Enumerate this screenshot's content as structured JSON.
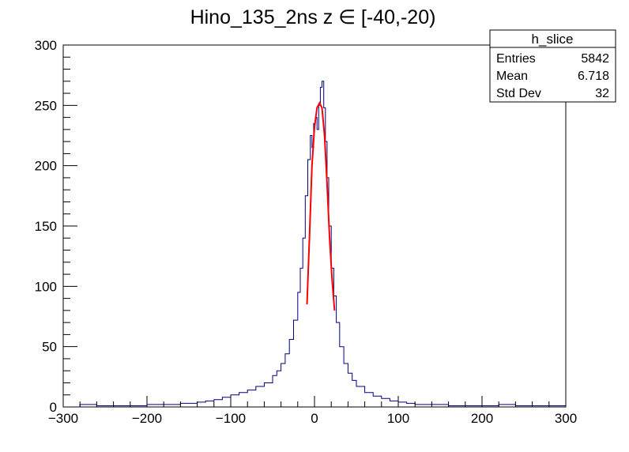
{
  "chart_data": {
    "type": "histogram",
    "title": "Hino_135_2ns z  ∈ [-40,-20)",
    "xlabel": "",
    "ylabel": "",
    "xlim": [
      -300,
      300
    ],
    "ylim": [
      0,
      300
    ],
    "x_ticks": [
      -300,
      -200,
      -100,
      0,
      100,
      200,
      300
    ],
    "x_tick_labels": [
      "−300",
      "−200",
      "−100",
      "0",
      "100",
      "200",
      "300"
    ],
    "y_ticks": [
      0,
      50,
      100,
      150,
      200,
      250,
      300
    ],
    "y_tick_labels": [
      "0",
      "50",
      "100",
      "150",
      "200",
      "250",
      "300"
    ],
    "grid": false,
    "histogram_color": "#00007f",
    "fit_color": "#ff0000",
    "series": [
      {
        "kind": "histogram",
        "x": [
          -300,
          -280,
          -260,
          -240,
          -220,
          -200,
          -180,
          -160,
          -150,
          -140,
          -130,
          -120,
          -110,
          -100,
          -90,
          -80,
          -70,
          -60,
          -50,
          -45,
          -40,
          -35,
          -30,
          -25,
          -20,
          -17,
          -14,
          -11,
          -8,
          -5,
          -3,
          -1,
          1,
          3,
          5,
          7,
          9,
          11,
          13,
          15,
          17,
          20,
          23,
          26,
          30,
          35,
          40,
          45,
          50,
          60,
          70,
          80,
          90,
          100,
          110,
          120,
          140,
          160,
          180,
          200,
          220,
          240,
          260,
          280,
          300
        ],
        "values": [
          0,
          2,
          1,
          1,
          1,
          2,
          2,
          3,
          3,
          4,
          5,
          6,
          8,
          10,
          12,
          14,
          17,
          20,
          26,
          30,
          36,
          44,
          56,
          72,
          95,
          115,
          140,
          175,
          205,
          225,
          215,
          235,
          240,
          230,
          250,
          265,
          270,
          248,
          220,
          190,
          150,
          115,
          92,
          70,
          50,
          36,
          28,
          22,
          17,
          12,
          9,
          7,
          5,
          4,
          3,
          2,
          2,
          1,
          1,
          1,
          2,
          1,
          1,
          1,
          0
        ]
      },
      {
        "kind": "fit",
        "x": [
          -9,
          -6,
          -3,
          0,
          3,
          6,
          9,
          12,
          15,
          18,
          21,
          24
        ],
        "values": [
          85,
          140,
          200,
          232,
          248,
          252,
          248,
          225,
          185,
          140,
          105,
          80
        ]
      }
    ],
    "stats_box": {
      "title": "h_slice",
      "rows": [
        {
          "label": "Entries",
          "value": "5842"
        },
        {
          "label": "Mean",
          "value": "6.718"
        },
        {
          "label": "Std Dev",
          "value": "32"
        }
      ]
    },
    "legend_placement": "top-right"
  }
}
